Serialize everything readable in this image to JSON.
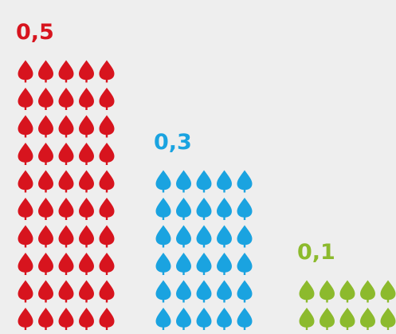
{
  "chart_data": {
    "type": "pictograph",
    "values": [
      0.5,
      0.3,
      0.1
    ],
    "value_labels": [
      "0,5",
      "0,3",
      "0,1"
    ],
    "colors": [
      "#d7141e",
      "#1aa3e0",
      "#8cba2d"
    ]
  }
}
